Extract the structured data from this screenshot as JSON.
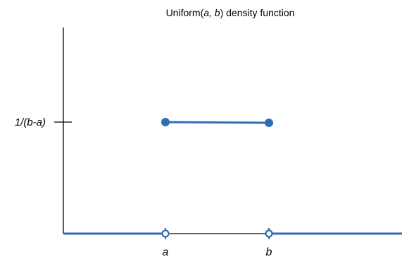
{
  "chart_data": {
    "type": "line",
    "title_parts": [
      {
        "text": "Uniform(",
        "italic": false
      },
      {
        "text": "a, b",
        "italic": true
      },
      {
        "text": ") density function",
        "italic": false
      }
    ],
    "xlabel": "",
    "ylabel": "",
    "x_ticks": [
      "a",
      "b"
    ],
    "y_ticks": [
      "1/(b-a)"
    ],
    "segments": [
      {
        "name": "",
        "x": [
          "-inf",
          "a"
        ],
        "y": 0,
        "start": "open-line",
        "end": "open"
      },
      {
        "name": "",
        "x": [
          "a",
          "b"
        ],
        "y": "1/(b-a)",
        "start": "closed",
        "end": "closed"
      },
      {
        "name": "",
        "x": [
          "b",
          "+inf"
        ],
        "y": 0,
        "start": "open",
        "end": "open-line"
      }
    ],
    "grid": false,
    "legend": "none",
    "colors": {
      "series": "#2E6DB4",
      "axis": "#000000"
    }
  }
}
